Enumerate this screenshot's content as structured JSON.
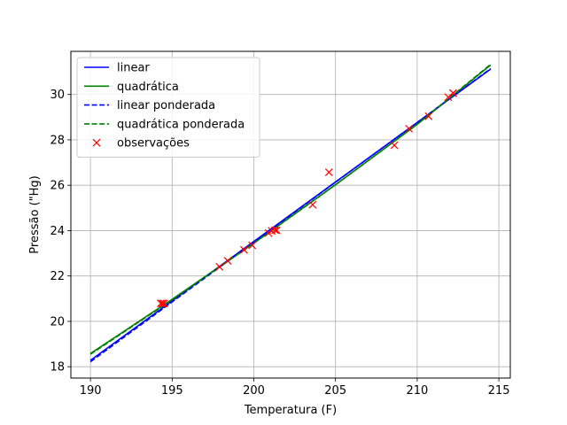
{
  "chart_data": {
    "type": "line",
    "title": "",
    "xlabel": "Temperatura (F)",
    "ylabel": "Pressão (\"Hg)",
    "xlim": [
      188.8,
      215.7
    ],
    "ylim": [
      17.5,
      31.9
    ],
    "xticks": [
      190,
      195,
      200,
      205,
      210,
      215
    ],
    "yticks": [
      18,
      20,
      22,
      24,
      26,
      28,
      30
    ],
    "grid": true,
    "legend_position": "top-left",
    "series": [
      {
        "name": "linear",
        "kind": "line",
        "style": "solid",
        "color": "#0000ff",
        "x": [
          190,
          214.5
        ],
        "y": [
          18.28,
          31.12
        ]
      },
      {
        "name": "quadrática",
        "kind": "line",
        "style": "solid",
        "color": "#008000",
        "x": [
          190,
          195,
          200,
          205,
          210,
          214.5
        ],
        "y": [
          18.58,
          20.97,
          23.45,
          26.02,
          28.68,
          31.3
        ]
      },
      {
        "name": "linear ponderada",
        "kind": "line",
        "style": "dashed",
        "color": "#0000ff",
        "x": [
          190,
          214.5
        ],
        "y": [
          18.22,
          31.14
        ]
      },
      {
        "name": "quadrática ponderada",
        "kind": "line",
        "style": "dashed",
        "color": "#008000",
        "x": [
          190,
          195,
          200,
          205,
          210,
          214.5
        ],
        "y": [
          18.55,
          20.95,
          23.44,
          26.02,
          28.69,
          31.33
        ]
      },
      {
        "name": "observações",
        "kind": "scatter",
        "marker": "x",
        "color": "#ff0000",
        "x": [
          194.3,
          194.5,
          194.4,
          197.9,
          198.4,
          199.4,
          199.9,
          200.9,
          201.1,
          201.3,
          201.4,
          203.6,
          204.6,
          208.6,
          209.5,
          210.7,
          211.9,
          212.2,
          212.2
        ],
        "y": [
          20.79,
          20.79,
          20.79,
          22.4,
          22.67,
          23.15,
          23.35,
          23.89,
          23.99,
          24.02,
          24.01,
          25.14,
          26.57,
          27.76,
          28.49,
          29.04,
          29.88,
          30.06,
          30.06
        ]
      }
    ]
  }
}
